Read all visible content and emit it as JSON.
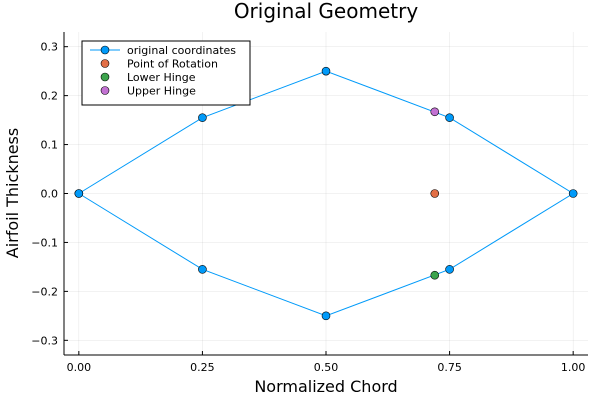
{
  "chart_data": {
    "type": "scatter",
    "title": "Original Geometry",
    "xlabel": "Normalized Chord",
    "ylabel": "Airfoil Thickness",
    "xlim": [
      -0.03,
      1.03
    ],
    "ylim": [
      -0.33,
      0.33
    ],
    "grid": true,
    "legend_position": "top-left",
    "x_ticks": [
      0.0,
      0.25,
      0.5,
      0.75,
      1.0
    ],
    "x_tick_labels": [
      "0.00",
      "0.25",
      "0.50",
      "0.75",
      "1.00"
    ],
    "y_ticks": [
      -0.3,
      -0.2,
      -0.1,
      0.0,
      0.1,
      0.2,
      0.3
    ],
    "y_tick_labels": [
      "−0.3",
      "−0.2",
      "−0.1",
      "0.0",
      "0.1",
      "0.2",
      "0.3"
    ],
    "series": [
      {
        "name": "original coordinates",
        "mode": "lines+markers",
        "color": "#009af9",
        "x": [
          0.0,
          0.25,
          0.5,
          0.75,
          1.0,
          0.75,
          0.5,
          0.25,
          0.0
        ],
        "y": [
          0.0,
          0.155,
          0.25,
          0.155,
          0.0,
          -0.155,
          -0.25,
          -0.155,
          0.0
        ]
      },
      {
        "name": "Point of Rotation",
        "mode": "markers",
        "color": "#e26f46",
        "x": [
          0.72
        ],
        "y": [
          0.0
        ]
      },
      {
        "name": "Lower Hinge",
        "mode": "markers",
        "color": "#3da44d",
        "x": [
          0.72
        ],
        "y": [
          -0.167
        ]
      },
      {
        "name": "Upper Hinge",
        "mode": "markers",
        "color": "#c271d2",
        "x": [
          0.72
        ],
        "y": [
          0.167
        ]
      }
    ]
  }
}
